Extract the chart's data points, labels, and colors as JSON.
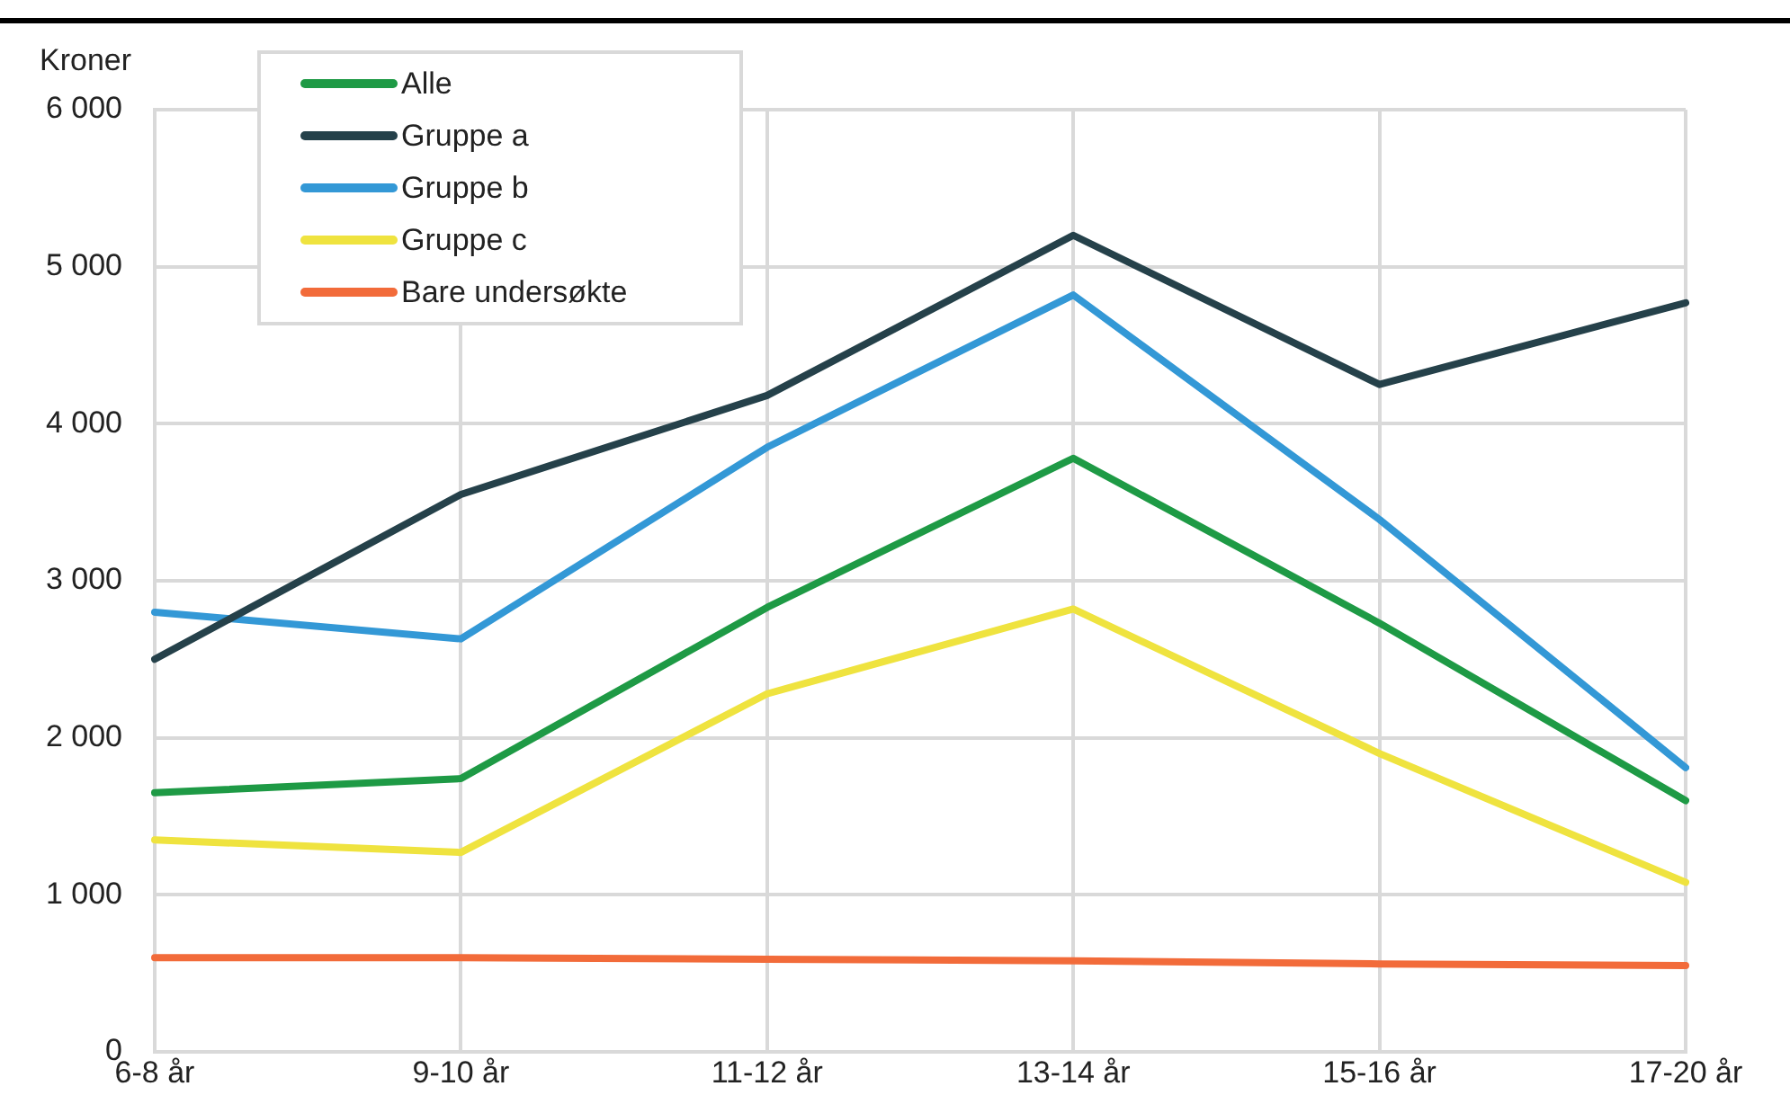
{
  "chart_data": {
    "type": "line",
    "ylabel": "Kroner",
    "categories": [
      "6-8 år",
      "9-10 år",
      "11-12 år",
      "13-14 år",
      "15-16 år",
      "17-20 år"
    ],
    "series": [
      {
        "name": "Alle",
        "color": "#1e9a45",
        "values": [
          1650,
          1740,
          2830,
          3780,
          2730,
          1600
        ]
      },
      {
        "name": "Gruppe a",
        "color": "#25414a",
        "values": [
          2500,
          3550,
          4180,
          5200,
          4250,
          4770
        ]
      },
      {
        "name": "Gruppe b",
        "color": "#3398d6",
        "values": [
          2800,
          2630,
          3850,
          4820,
          3390,
          1810
        ]
      },
      {
        "name": "Gruppe c",
        "color": "#efe33f",
        "values": [
          1350,
          1270,
          2280,
          2820,
          1900,
          1080
        ]
      },
      {
        "name": "Bare undersøkte",
        "color": "#f26b3a",
        "values": [
          600,
          600,
          590,
          580,
          560,
          550
        ]
      }
    ],
    "ylim": [
      0,
      6000
    ],
    "yticks": [
      0,
      {
        "value": 1000,
        "label": "1 000"
      },
      {
        "value": 2000,
        "label": "2 000"
      },
      {
        "value": 3000,
        "label": "3 000"
      },
      {
        "value": 4000,
        "label": "4 000"
      },
      {
        "value": 5000,
        "label": "5 000"
      },
      {
        "value": 6000,
        "label": "6 000"
      }
    ],
    "grid": true,
    "legend": "top left",
    "marker": "none",
    "line_style": "solid"
  }
}
